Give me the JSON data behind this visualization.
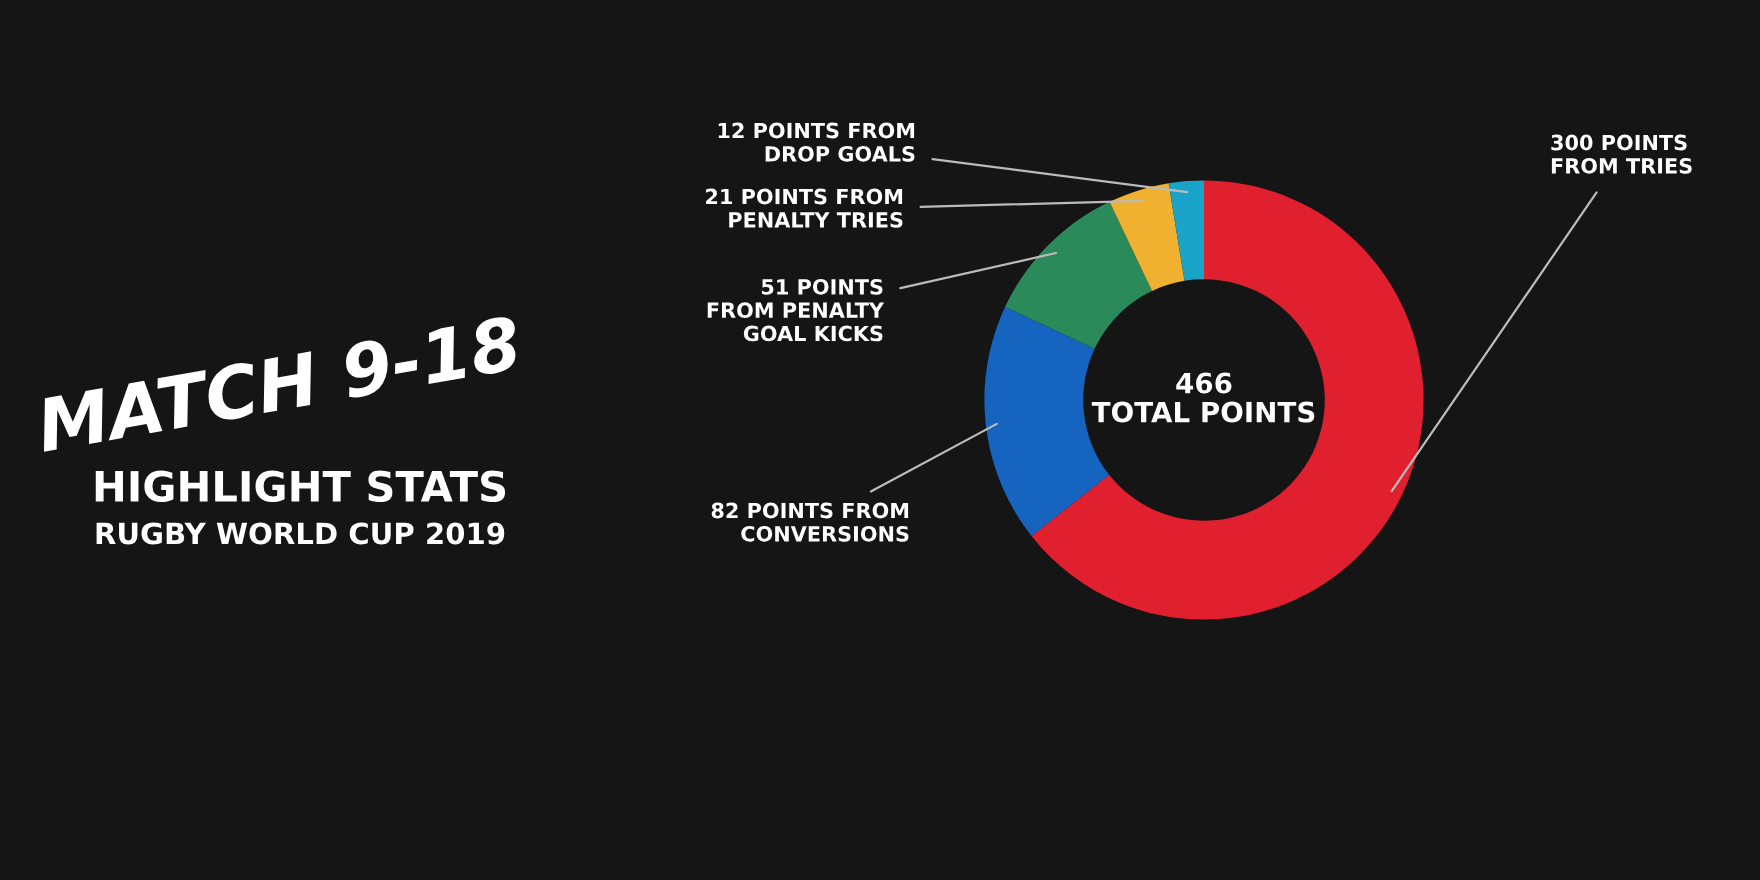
{
  "chart_data": {
    "type": "donut",
    "title": "MATCH 9-18",
    "subtitle": "HIGHLIGHT STATS",
    "categories": [
      "300 POINTS\nFROM TRIES",
      "82 POINTS FROM\nCONVERSIONS",
      "51 POINTS\nFROM PENALTY\nGOAL KICKS",
      "21 POINTS FROM\nPENALTY TRIES",
      "12 POINTS FROM\nDROP GOALS"
    ],
    "values": [
      300,
      82,
      51,
      21,
      12
    ],
    "colors": [
      "#e0202e",
      "#1565c0",
      "#2a8a5a",
      "#f0b030",
      "#1aa3c9"
    ],
    "annotations": [
      "RUGBY WORLD CUP 2019",
      "466\nTOTAL POINTS"
    ]
  }
}
